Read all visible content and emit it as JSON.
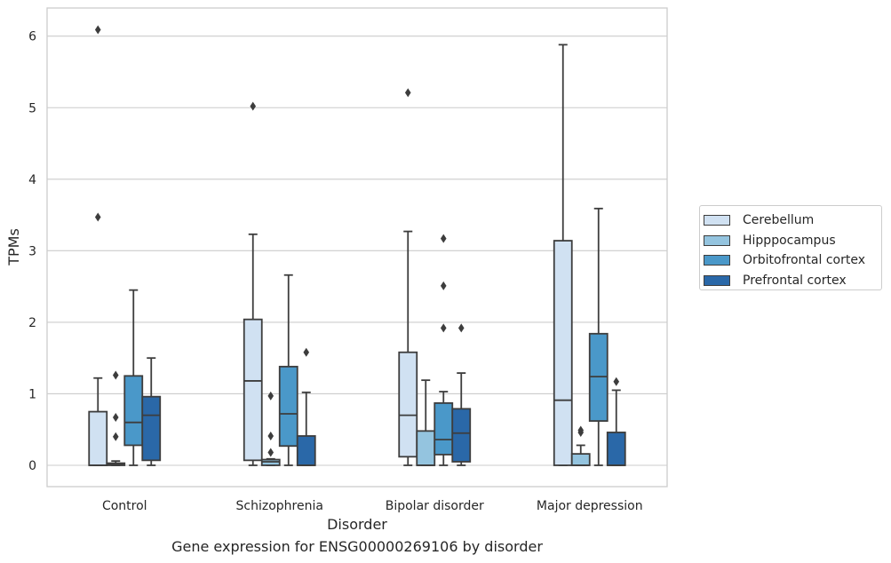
{
  "chart_data": {
    "type": "boxplot",
    "xlabel": "Disorder",
    "ylabel": "TPMs",
    "caption": "Gene expression for ENSG00000269106 by disorder",
    "ylim": [
      -0.3,
      6.4
    ],
    "yticks": [
      "0",
      "1",
      "2",
      "3",
      "4",
      "5",
      "6"
    ],
    "grid": "horizontal",
    "legend_position": "right",
    "categories": [
      "Control",
      "Schizophrenia",
      "Bipolar disorder",
      "Major depression"
    ],
    "series": [
      {
        "name": "Cerebellum",
        "color": "#d0e1f2",
        "boxes": [
          {
            "whislo": 0,
            "q1": 0,
            "med": 0,
            "q3": 0.75,
            "whishi": 1.22,
            "fliers": [
              3.47,
              6.09
            ]
          },
          {
            "whislo": 0,
            "q1": 0.07,
            "med": 1.18,
            "q3": 2.04,
            "whishi": 3.23,
            "fliers": [
              5.02
            ]
          },
          {
            "whislo": 0,
            "q1": 0.12,
            "med": 0.7,
            "q3": 1.58,
            "whishi": 3.27,
            "fliers": [
              5.21
            ]
          },
          {
            "whislo": 0,
            "q1": 0,
            "med": 0.91,
            "q3": 3.14,
            "whishi": 5.88,
            "fliers": []
          }
        ]
      },
      {
        "name": "Hipppocampus",
        "color": "#94c4df",
        "boxes": [
          {
            "whislo": 0,
            "q1": 0,
            "med": 0.01,
            "q3": 0.03,
            "whishi": 0.06,
            "fliers": [
              0.4,
              0.67,
              1.26
            ]
          },
          {
            "whislo": 0,
            "q1": 0,
            "med": 0.05,
            "q3": 0.08,
            "whishi": 0.09,
            "fliers": [
              0.18,
              0.41,
              0.97
            ]
          },
          {
            "whislo": 0,
            "q1": 0,
            "med": 0,
            "q3": 0.48,
            "whishi": 1.19,
            "fliers": []
          },
          {
            "whislo": 0,
            "q1": 0,
            "med": 0,
            "q3": 0.16,
            "whishi": 0.28,
            "fliers": [
              0.46,
              0.49
            ]
          }
        ]
      },
      {
        "name": "Orbitofrontal cortex",
        "color": "#4a98c9",
        "boxes": [
          {
            "whislo": 0,
            "q1": 0.28,
            "med": 0.6,
            "q3": 1.25,
            "whishi": 2.45,
            "fliers": []
          },
          {
            "whislo": 0,
            "q1": 0.27,
            "med": 0.72,
            "q3": 1.38,
            "whishi": 2.66,
            "fliers": []
          },
          {
            "whislo": 0,
            "q1": 0.15,
            "med": 0.36,
            "q3": 0.87,
            "whishi": 1.03,
            "fliers": [
              1.92,
              2.51,
              3.17
            ]
          },
          {
            "whislo": 0,
            "q1": 0.62,
            "med": 1.24,
            "q3": 1.84,
            "whishi": 3.59,
            "fliers": []
          }
        ]
      },
      {
        "name": "Prefrontal cortex",
        "color": "#2a68a8",
        "boxes": [
          {
            "whislo": 0,
            "q1": 0.07,
            "med": 0.7,
            "q3": 0.96,
            "whishi": 1.5,
            "fliers": []
          },
          {
            "whislo": 0,
            "q1": 0,
            "med": 0,
            "q3": 0.41,
            "whishi": 1.02,
            "fliers": [
              1.58
            ]
          },
          {
            "whislo": 0,
            "q1": 0.05,
            "med": 0.45,
            "q3": 0.79,
            "whishi": 1.29,
            "fliers": [
              1.92
            ]
          },
          {
            "whislo": 0,
            "q1": 0,
            "med": 0,
            "q3": 0.46,
            "whishi": 1.05,
            "fliers": [
              1.17
            ]
          }
        ]
      }
    ]
  }
}
